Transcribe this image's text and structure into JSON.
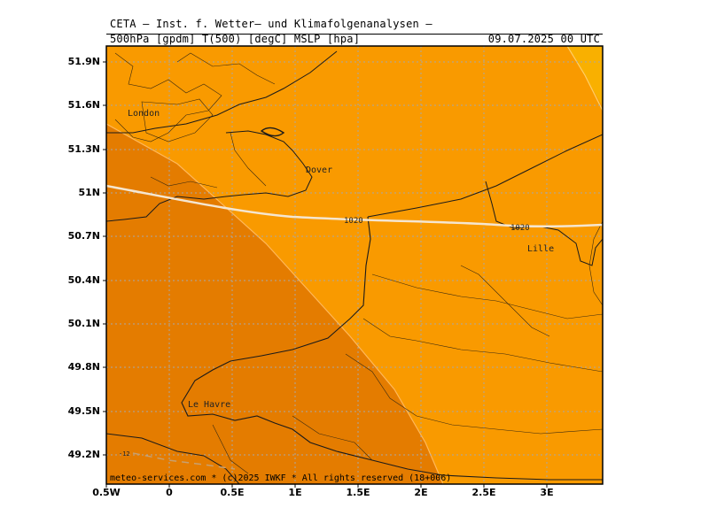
{
  "header": {
    "title": "CETA — Inst. f. Wetter— und Klimafolgenanalysen —",
    "params": "500hPa [gpdm] T(500) [degC] MSLP [hpa]",
    "valid_time": "09.07.2025 00 UTC"
  },
  "axes": {
    "lat_labels": [
      "51.9N",
      "51.6N",
      "51.3N",
      "51N",
      "50.7N",
      "50.4N",
      "50.1N",
      "49.8N",
      "49.5N",
      "49.2N"
    ],
    "lon_labels": [
      "0.5W",
      "0",
      "0.5E",
      "1E",
      "1.5E",
      "2E",
      "2.5E",
      "3E"
    ]
  },
  "places": {
    "london": "London",
    "dover": "Dover",
    "lille": "Lille",
    "le_havre": "Le Havre"
  },
  "isobars": {
    "label_1": "1020",
    "label_2": "1020",
    "small_label": "-12"
  },
  "footer": {
    "credit": "meteo-services.com * (c)2025 IWKF * All rights reserved (18+006)"
  },
  "colors": {
    "background_fill": "#f99a00",
    "cold_band": "#e47c00",
    "warm_corner": "#f9b000",
    "isobar": "#f5e6d0",
    "grid": "#a8a8a8"
  }
}
